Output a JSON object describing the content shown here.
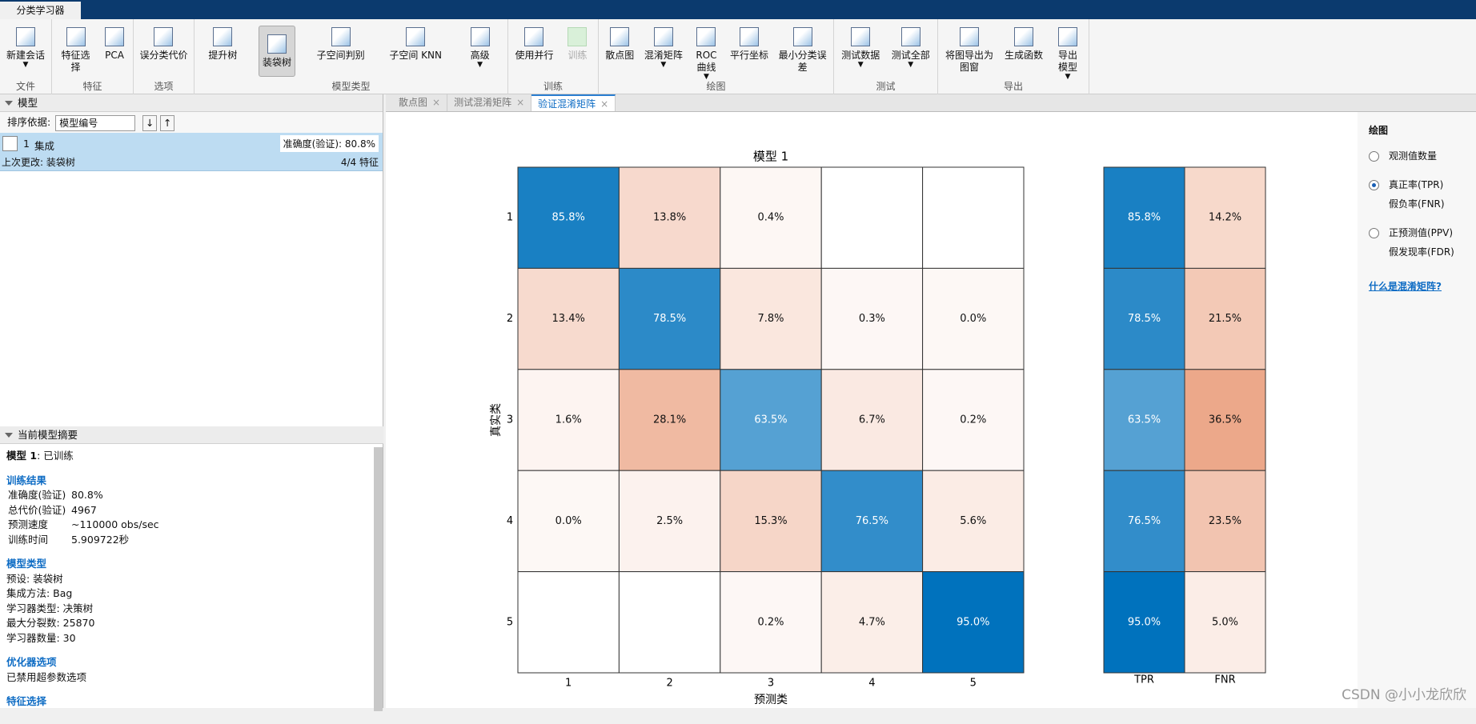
{
  "app_tab": "分类学习器",
  "toolbar": {
    "groups": [
      {
        "label": "文件",
        "buttons": [
          {
            "label": "新建会话",
            "dropdown": true
          }
        ]
      },
      {
        "label": "特征",
        "buttons": [
          {
            "label": "特征选择"
          },
          {
            "label": "PCA"
          }
        ]
      },
      {
        "label": "选项",
        "buttons": [
          {
            "label": "误分类代价"
          }
        ]
      },
      {
        "label": "模型类型",
        "buttons": [
          {
            "label": "提升树"
          },
          {
            "label": "装袋树",
            "selected": true
          },
          {
            "label": "子空间判别"
          },
          {
            "label": "子空间 KNN"
          },
          {
            "label": "高级",
            "dropdown": true
          }
        ]
      },
      {
        "label": "训练",
        "buttons": [
          {
            "label": "使用并行"
          },
          {
            "label": "训练",
            "disabled": true
          }
        ]
      },
      {
        "label": "绘图",
        "buttons": [
          {
            "label": "散点图"
          },
          {
            "label": "混淆矩阵",
            "dropdown": true
          },
          {
            "label": "ROC\n曲线",
            "dropdown": true
          },
          {
            "label": "平行坐标"
          },
          {
            "label": "最小分类误\n差"
          }
        ]
      },
      {
        "label": "测试",
        "buttons": [
          {
            "label": "测试数据",
            "dropdown": true
          },
          {
            "label": "测试全部",
            "dropdown": true
          }
        ]
      },
      {
        "label": "导出",
        "buttons": [
          {
            "label": "将图导出为\n图窗"
          },
          {
            "label": "生成函数"
          },
          {
            "label": "导出\n模型",
            "dropdown": true
          }
        ]
      }
    ]
  },
  "models_panel": {
    "title": "模型",
    "sort_label": "排序依据:",
    "sort_value": "模型编号",
    "model": {
      "number": "1",
      "name": "集成",
      "accuracy": "准确度(验证): 80.8%",
      "last_change": "上次更改: 装袋树",
      "features": "4/4 特征"
    }
  },
  "summary_panel": {
    "title": "当前模型摘要",
    "model_name": "模型 1",
    "model_status": ": 已训练",
    "sections": [
      {
        "heading": "训练结果",
        "rows": [
          [
            "准确度(验证)",
            "80.8%"
          ],
          [
            "总代价(验证)",
            "4967"
          ],
          [
            "预测速度",
            "~110000 obs/sec"
          ],
          [
            "训练时间",
            "5.909722秒"
          ]
        ]
      },
      {
        "heading": "模型类型",
        "lines": [
          "预设: 装袋树",
          "集成方法: Bag",
          "学习器类型: 决策树",
          "最大分裂数: 25870",
          "学习器数量: 30"
        ]
      },
      {
        "heading": "优化器选项",
        "lines": [
          "已禁用超参数选项"
        ]
      },
      {
        "heading": "特征选择",
        "lines": []
      }
    ]
  },
  "doc_tabs": [
    {
      "label": "散点图"
    },
    {
      "label": "测试混淆矩阵"
    },
    {
      "label": "验证混淆矩阵",
      "active": true
    }
  ],
  "confusion_matrix": {
    "title": "模型 1",
    "x_label": "预测类",
    "y_label": "真实类",
    "classes": [
      "1",
      "2",
      "3",
      "4",
      "5"
    ],
    "diagonal_color": "#0072bd",
    "off_diagonal_color": "#e0703f",
    "values": [
      [
        85.8,
        13.8,
        0.4,
        null,
        null
      ],
      [
        13.4,
        78.5,
        7.8,
        0.3,
        0.0
      ],
      [
        1.6,
        28.1,
        63.5,
        6.7,
        0.2
      ],
      [
        0.0,
        2.5,
        15.3,
        76.5,
        5.6
      ],
      [
        null,
        null,
        0.2,
        4.7,
        95.0
      ]
    ],
    "value_labels": [
      [
        "85.8%",
        "13.8%",
        "0.4%",
        null,
        null
      ],
      [
        "13.4%",
        "78.5%",
        "7.8%",
        "0.3%",
        "0.0%"
      ],
      [
        "1.6%",
        "28.1%",
        "63.5%",
        "6.7%",
        "0.2%"
      ],
      [
        "0.0%",
        "2.5%",
        "15.3%",
        "76.5%",
        "5.6%"
      ],
      [
        null,
        null,
        "0.2%",
        "4.7%",
        "95.0%"
      ]
    ],
    "summary_columns": [
      "TPR",
      "FNR"
    ],
    "summary_values": [
      [
        85.8,
        14.2
      ],
      [
        78.5,
        21.5
      ],
      [
        63.5,
        36.5
      ],
      [
        76.5,
        23.5
      ],
      [
        95.0,
        5.0
      ]
    ],
    "summary_labels": [
      [
        "85.8%",
        "14.2%"
      ],
      [
        "78.5%",
        "21.5%"
      ],
      [
        "63.5%",
        "36.5%"
      ],
      [
        "76.5%",
        "23.5%"
      ],
      [
        "95.0%",
        "5.0%"
      ]
    ]
  },
  "plot_options": {
    "title": "绘图",
    "options": [
      {
        "lines": [
          "观测值数量"
        ]
      },
      {
        "lines": [
          "真正率(TPR)",
          "假负率(FNR)"
        ],
        "checked": true
      },
      {
        "lines": [
          "正预测值(PPV)",
          "假发现率(FDR)"
        ]
      }
    ],
    "help_link": "什么是混淆矩阵?"
  },
  "watermark": "CSDN @小小龙欣欣"
}
